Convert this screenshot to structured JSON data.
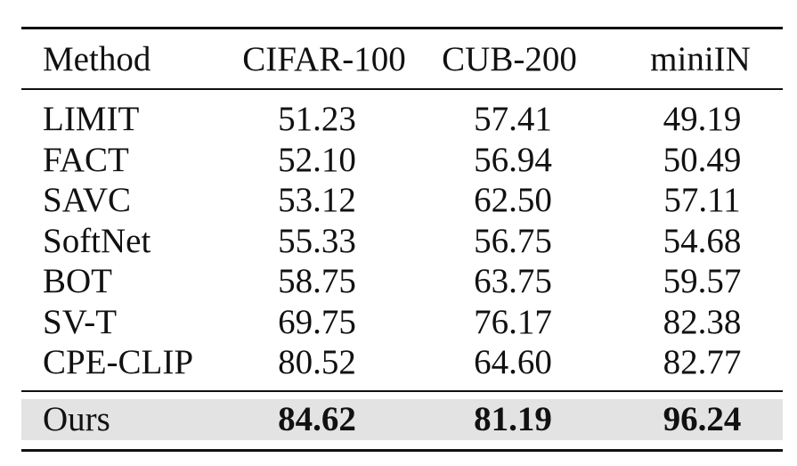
{
  "table": {
    "headers": [
      "Method",
      "CIFAR-100",
      "CUB-200",
      "miniIN"
    ],
    "rows": [
      {
        "method": "LIMIT",
        "cifar": "51.23",
        "cub": "57.41",
        "mini": "49.19"
      },
      {
        "method": "FACT",
        "cifar": "52.10",
        "cub": "56.94",
        "mini": "50.49"
      },
      {
        "method": "SAVC",
        "cifar": "53.12",
        "cub": "62.50",
        "mini": "57.11"
      },
      {
        "method": "SoftNet",
        "cifar": "55.33",
        "cub": "56.75",
        "mini": "54.68"
      },
      {
        "method": "BOT",
        "cifar": "58.75",
        "cub": "63.75",
        "mini": "59.57"
      },
      {
        "method": "SV-T",
        "cifar": "69.75",
        "cub": "76.17",
        "mini": "82.38"
      },
      {
        "method": "CPE-CLIP",
        "cifar": "80.52",
        "cub": "64.60",
        "mini": "82.77"
      }
    ],
    "highlight_row": {
      "method": "Ours",
      "cifar": "84.62",
      "cub": "81.19",
      "mini": "96.24"
    },
    "highlight_color": "#e3e3e3"
  }
}
